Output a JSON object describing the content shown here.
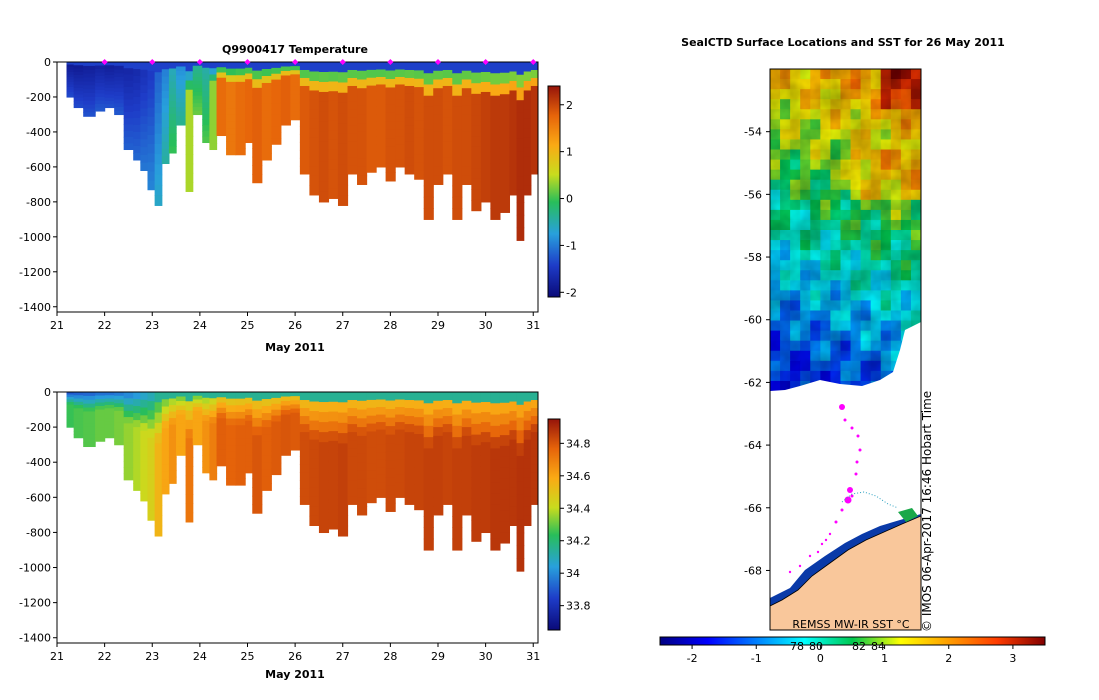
{
  "chart_data": [
    {
      "type": "heatmap",
      "title": "Q9900417  Temperature",
      "xlabel": "May 2011",
      "ylabel": "",
      "x_ticks": [
        "21",
        "22",
        "23",
        "24",
        "25",
        "26",
        "27",
        "28",
        "29",
        "30",
        "31"
      ],
      "y_ticks": [
        "0",
        "-200",
        "-400",
        "-600",
        "-800",
        "-1000",
        "-1200",
        "-1400"
      ],
      "xlim": [
        21,
        31.1
      ],
      "ylim": [
        -1430,
        0
      ],
      "colorbar": {
        "ticks": [
          "2",
          "1",
          "0",
          "-1",
          "-2"
        ],
        "range": [
          -2.1,
          2.4
        ]
      },
      "markers": {
        "label": "profile surface positions",
        "x": [
          22,
          23,
          24,
          25,
          26,
          27,
          28,
          29,
          30,
          31
        ]
      },
      "profiles": [
        {
          "x": 21.2,
          "bottom": -200,
          "v": -1.9
        },
        {
          "x": 21.35,
          "bottom": -260,
          "v": -1.9
        },
        {
          "x": 21.55,
          "bottom": -310,
          "v": -1.85
        },
        {
          "x": 21.8,
          "bottom": -280,
          "v": -1.8
        },
        {
          "x": 22.0,
          "bottom": -260,
          "v": -1.85
        },
        {
          "x": 22.2,
          "bottom": -300,
          "v": -1.8
        },
        {
          "x": 22.4,
          "bottom": -500,
          "v": -1.75
        },
        {
          "x": 22.6,
          "bottom": -560,
          "v": -1.7
        },
        {
          "x": 22.75,
          "bottom": -620,
          "v": -1.6
        },
        {
          "x": 22.9,
          "bottom": -730,
          "v": -1.5
        },
        {
          "x": 23.05,
          "bottom": -820,
          "v": -1.2
        },
        {
          "x": 23.2,
          "bottom": -580,
          "v": -1.0
        },
        {
          "x": 23.35,
          "bottom": -520,
          "v": -0.6
        },
        {
          "x": 23.5,
          "bottom": -360,
          "v": -0.9
        },
        {
          "x": 23.7,
          "bottom": -740,
          "v": 0.4
        },
        {
          "x": 23.85,
          "bottom": -300,
          "v": -0.4
        },
        {
          "x": 24.05,
          "bottom": -460,
          "v": -0.5
        },
        {
          "x": 24.2,
          "bottom": -500,
          "v": 0.3
        },
        {
          "x": 24.35,
          "bottom": -420,
          "v": 1.7
        },
        {
          "x": 24.55,
          "bottom": -530,
          "v": 1.6
        },
        {
          "x": 24.75,
          "bottom": -530,
          "v": 1.7
        },
        {
          "x": 24.95,
          "bottom": -460,
          "v": 1.75
        },
        {
          "x": 25.1,
          "bottom": -690,
          "v": 1.8
        },
        {
          "x": 25.3,
          "bottom": -560,
          "v": 1.7
        },
        {
          "x": 25.5,
          "bottom": -470,
          "v": 1.75
        },
        {
          "x": 25.7,
          "bottom": -360,
          "v": 1.8
        },
        {
          "x": 25.9,
          "bottom": -330,
          "v": 1.7
        },
        {
          "x": 26.1,
          "bottom": -640,
          "v": 1.85
        },
        {
          "x": 26.3,
          "bottom": -760,
          "v": 1.9
        },
        {
          "x": 26.5,
          "bottom": -800,
          "v": 1.95
        },
        {
          "x": 26.7,
          "bottom": -780,
          "v": 1.9
        },
        {
          "x": 26.9,
          "bottom": -820,
          "v": 1.95
        },
        {
          "x": 27.1,
          "bottom": -640,
          "v": 1.9
        },
        {
          "x": 27.3,
          "bottom": -700,
          "v": 1.9
        },
        {
          "x": 27.5,
          "bottom": -630,
          "v": 1.85
        },
        {
          "x": 27.7,
          "bottom": -600,
          "v": 1.85
        },
        {
          "x": 27.9,
          "bottom": -680,
          "v": 1.9
        },
        {
          "x": 28.1,
          "bottom": -600,
          "v": 1.9
        },
        {
          "x": 28.3,
          "bottom": -640,
          "v": 1.95
        },
        {
          "x": 28.5,
          "bottom": -670,
          "v": 1.9
        },
        {
          "x": 28.7,
          "bottom": -900,
          "v": 1.95
        },
        {
          "x": 28.9,
          "bottom": -700,
          "v": 1.95
        },
        {
          "x": 29.1,
          "bottom": -640,
          "v": 1.9
        },
        {
          "x": 29.3,
          "bottom": -900,
          "v": 1.95
        },
        {
          "x": 29.5,
          "bottom": -700,
          "v": 1.95
        },
        {
          "x": 29.7,
          "bottom": -850,
          "v": 2.0
        },
        {
          "x": 29.9,
          "bottom": -800,
          "v": 2.05
        },
        {
          "x": 30.1,
          "bottom": -900,
          "v": 2.1
        },
        {
          "x": 30.3,
          "bottom": -860,
          "v": 2.1
        },
        {
          "x": 30.5,
          "bottom": -760,
          "v": 2.15
        },
        {
          "x": 30.65,
          "bottom": -1020,
          "v": 2.2
        },
        {
          "x": 30.8,
          "bottom": -760,
          "v": 2.2
        },
        {
          "x": 30.95,
          "bottom": -640,
          "v": 2.15
        }
      ]
    },
    {
      "type": "heatmap",
      "title": "",
      "xlabel": "May 2011",
      "ylabel": "",
      "x_ticks": [
        "21",
        "22",
        "23",
        "24",
        "25",
        "26",
        "27",
        "28",
        "29",
        "30",
        "31"
      ],
      "y_ticks": [
        "0",
        "-200",
        "-400",
        "-600",
        "-800",
        "-1000",
        "-1200",
        "-1400"
      ],
      "xlim": [
        21,
        31.1
      ],
      "ylim": [
        -1430,
        0
      ],
      "colorbar": {
        "ticks": [
          "34.8",
          "34.6",
          "34.4",
          "34.2",
          "34",
          "33.8"
        ],
        "range": [
          33.65,
          34.95
        ]
      },
      "profiles": [
        {
          "x": 21.2,
          "bottom": -200,
          "v": 34.25
        },
        {
          "x": 21.35,
          "bottom": -260,
          "v": 34.27
        },
        {
          "x": 21.55,
          "bottom": -310,
          "v": 34.28
        },
        {
          "x": 21.8,
          "bottom": -280,
          "v": 34.3
        },
        {
          "x": 22.0,
          "bottom": -260,
          "v": 34.3
        },
        {
          "x": 22.2,
          "bottom": -300,
          "v": 34.32
        },
        {
          "x": 22.4,
          "bottom": -500,
          "v": 34.35
        },
        {
          "x": 22.6,
          "bottom": -560,
          "v": 34.38
        },
        {
          "x": 22.75,
          "bottom": -620,
          "v": 34.42
        },
        {
          "x": 22.9,
          "bottom": -730,
          "v": 34.45
        },
        {
          "x": 23.05,
          "bottom": -820,
          "v": 34.55
        },
        {
          "x": 23.2,
          "bottom": -580,
          "v": 34.6
        },
        {
          "x": 23.35,
          "bottom": -520,
          "v": 34.65
        },
        {
          "x": 23.5,
          "bottom": -360,
          "v": 34.6
        },
        {
          "x": 23.7,
          "bottom": -740,
          "v": 34.72
        },
        {
          "x": 23.85,
          "bottom": -300,
          "v": 34.6
        },
        {
          "x": 24.05,
          "bottom": -460,
          "v": 34.65
        },
        {
          "x": 24.2,
          "bottom": -500,
          "v": 34.7
        },
        {
          "x": 24.35,
          "bottom": -420,
          "v": 34.78
        },
        {
          "x": 24.55,
          "bottom": -530,
          "v": 34.77
        },
        {
          "x": 24.75,
          "bottom": -530,
          "v": 34.78
        },
        {
          "x": 24.95,
          "bottom": -460,
          "v": 34.78
        },
        {
          "x": 25.1,
          "bottom": -690,
          "v": 34.8
        },
        {
          "x": 25.3,
          "bottom": -560,
          "v": 34.78
        },
        {
          "x": 25.5,
          "bottom": -470,
          "v": 34.79
        },
        {
          "x": 25.7,
          "bottom": -360,
          "v": 34.8
        },
        {
          "x": 25.9,
          "bottom": -330,
          "v": 34.79
        },
        {
          "x": 26.1,
          "bottom": -640,
          "v": 34.82
        },
        {
          "x": 26.3,
          "bottom": -760,
          "v": 34.83
        },
        {
          "x": 26.5,
          "bottom": -800,
          "v": 34.84
        },
        {
          "x": 26.7,
          "bottom": -780,
          "v": 34.84
        },
        {
          "x": 26.9,
          "bottom": -820,
          "v": 34.85
        },
        {
          "x": 27.1,
          "bottom": -640,
          "v": 34.83
        },
        {
          "x": 27.3,
          "bottom": -700,
          "v": 34.83
        },
        {
          "x": 27.5,
          "bottom": -630,
          "v": 34.82
        },
        {
          "x": 27.7,
          "bottom": -600,
          "v": 34.82
        },
        {
          "x": 27.9,
          "bottom": -680,
          "v": 34.83
        },
        {
          "x": 28.1,
          "bottom": -600,
          "v": 34.83
        },
        {
          "x": 28.3,
          "bottom": -640,
          "v": 34.84
        },
        {
          "x": 28.5,
          "bottom": -670,
          "v": 34.84
        },
        {
          "x": 28.7,
          "bottom": -900,
          "v": 34.85
        },
        {
          "x": 28.9,
          "bottom": -700,
          "v": 34.85
        },
        {
          "x": 29.1,
          "bottom": -640,
          "v": 34.84
        },
        {
          "x": 29.3,
          "bottom": -900,
          "v": 34.85
        },
        {
          "x": 29.5,
          "bottom": -700,
          "v": 34.85
        },
        {
          "x": 29.7,
          "bottom": -850,
          "v": 34.86
        },
        {
          "x": 29.9,
          "bottom": -800,
          "v": 34.86
        },
        {
          "x": 30.1,
          "bottom": -900,
          "v": 34.87
        },
        {
          "x": 30.3,
          "bottom": -860,
          "v": 34.87
        },
        {
          "x": 30.5,
          "bottom": -760,
          "v": 34.87
        },
        {
          "x": 30.65,
          "bottom": -1020,
          "v": 34.88
        },
        {
          "x": 30.8,
          "bottom": -760,
          "v": 34.88
        },
        {
          "x": 30.95,
          "bottom": -640,
          "v": 34.87
        }
      ]
    },
    {
      "type": "heatmap",
      "title": "SealCTD Surface Locations and SST for 26 May 2011",
      "xlabel": "",
      "ylabel": "",
      "y_ticks": [
        "-54",
        "-56",
        "-58",
        "-60",
        "-62",
        "-64",
        "-66",
        "-68"
      ],
      "ylim": [
        -69.9,
        -52.0
      ],
      "colorbar": {
        "label": "REMSS MW-IR SST °C",
        "ticks": [
          "-2",
          "-1",
          "0",
          "1",
          "2",
          "3"
        ],
        "range": [
          -2.5,
          3.5
        ],
        "extra_ticks": [
          "78",
          "80",
          "82",
          "84"
        ]
      },
      "watermark": "© IMOS 06-Apr-2017 16:46 Hobart Time"
    }
  ],
  "colors": {
    "ocean_blank": "#ffffff",
    "land": "#f9c79b",
    "marker": "#ff00ff",
    "coast_ice": "#0a3aa8"
  }
}
